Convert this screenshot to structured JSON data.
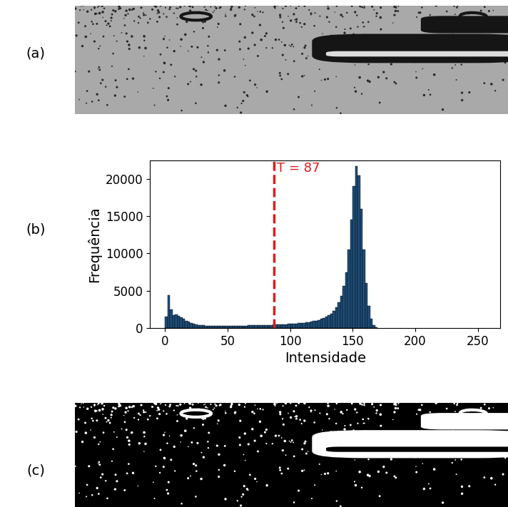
{
  "panel_labels": [
    "(a)",
    "(b)",
    "(c)"
  ],
  "chart_data": {
    "type": "histogram",
    "x_label": "Intensidade",
    "y_label": "Frequência",
    "bins": [
      0,
      2,
      4,
      6,
      8,
      10,
      12,
      14,
      16,
      18,
      20,
      22,
      24,
      26,
      28,
      30,
      32,
      34,
      36,
      38,
      40,
      42,
      44,
      46,
      48,
      50,
      52,
      54,
      56,
      58,
      60,
      62,
      64,
      66,
      68,
      70,
      72,
      74,
      76,
      78,
      80,
      82,
      84,
      86,
      88,
      90,
      92,
      94,
      96,
      98,
      100,
      102,
      104,
      106,
      108,
      110,
      112,
      114,
      116,
      118,
      120,
      122,
      124,
      126,
      128,
      130,
      132,
      134,
      136,
      138,
      140,
      142,
      144,
      146,
      148,
      150,
      152,
      154,
      156,
      158,
      160,
      162,
      164,
      166,
      168,
      170
    ],
    "counts": [
      1500,
      4400,
      2500,
      1700,
      1800,
      1600,
      1400,
      1200,
      1000,
      850,
      700,
      600,
      500,
      420,
      380,
      340,
      310,
      290,
      270,
      260,
      250,
      250,
      250,
      250,
      260,
      260,
      270,
      280,
      290,
      300,
      310,
      320,
      330,
      340,
      350,
      360,
      370,
      380,
      390,
      400,
      410,
      420,
      430,
      440,
      450,
      460,
      480,
      500,
      520,
      540,
      560,
      580,
      600,
      630,
      660,
      700,
      740,
      790,
      850,
      920,
      1000,
      1100,
      1200,
      1350,
      1500,
      1700,
      1950,
      2300,
      2800,
      3400,
      4300,
      5600,
      7500,
      10500,
      14500,
      19000,
      21700,
      20500,
      16000,
      10500,
      6000,
      3000,
      1200,
      400,
      100
    ],
    "color": "#1f4e79",
    "threshold": {
      "value": 87,
      "label": "T = 87",
      "color": "#e31a1c",
      "line_style": "dashed"
    },
    "xlim": [
      -12,
      268
    ],
    "xticks": [
      0,
      50,
      100,
      150,
      200,
      250
    ],
    "ylim": [
      0,
      22500
    ],
    "yticks": [
      0,
      5000,
      10000,
      15000,
      20000
    ]
  }
}
